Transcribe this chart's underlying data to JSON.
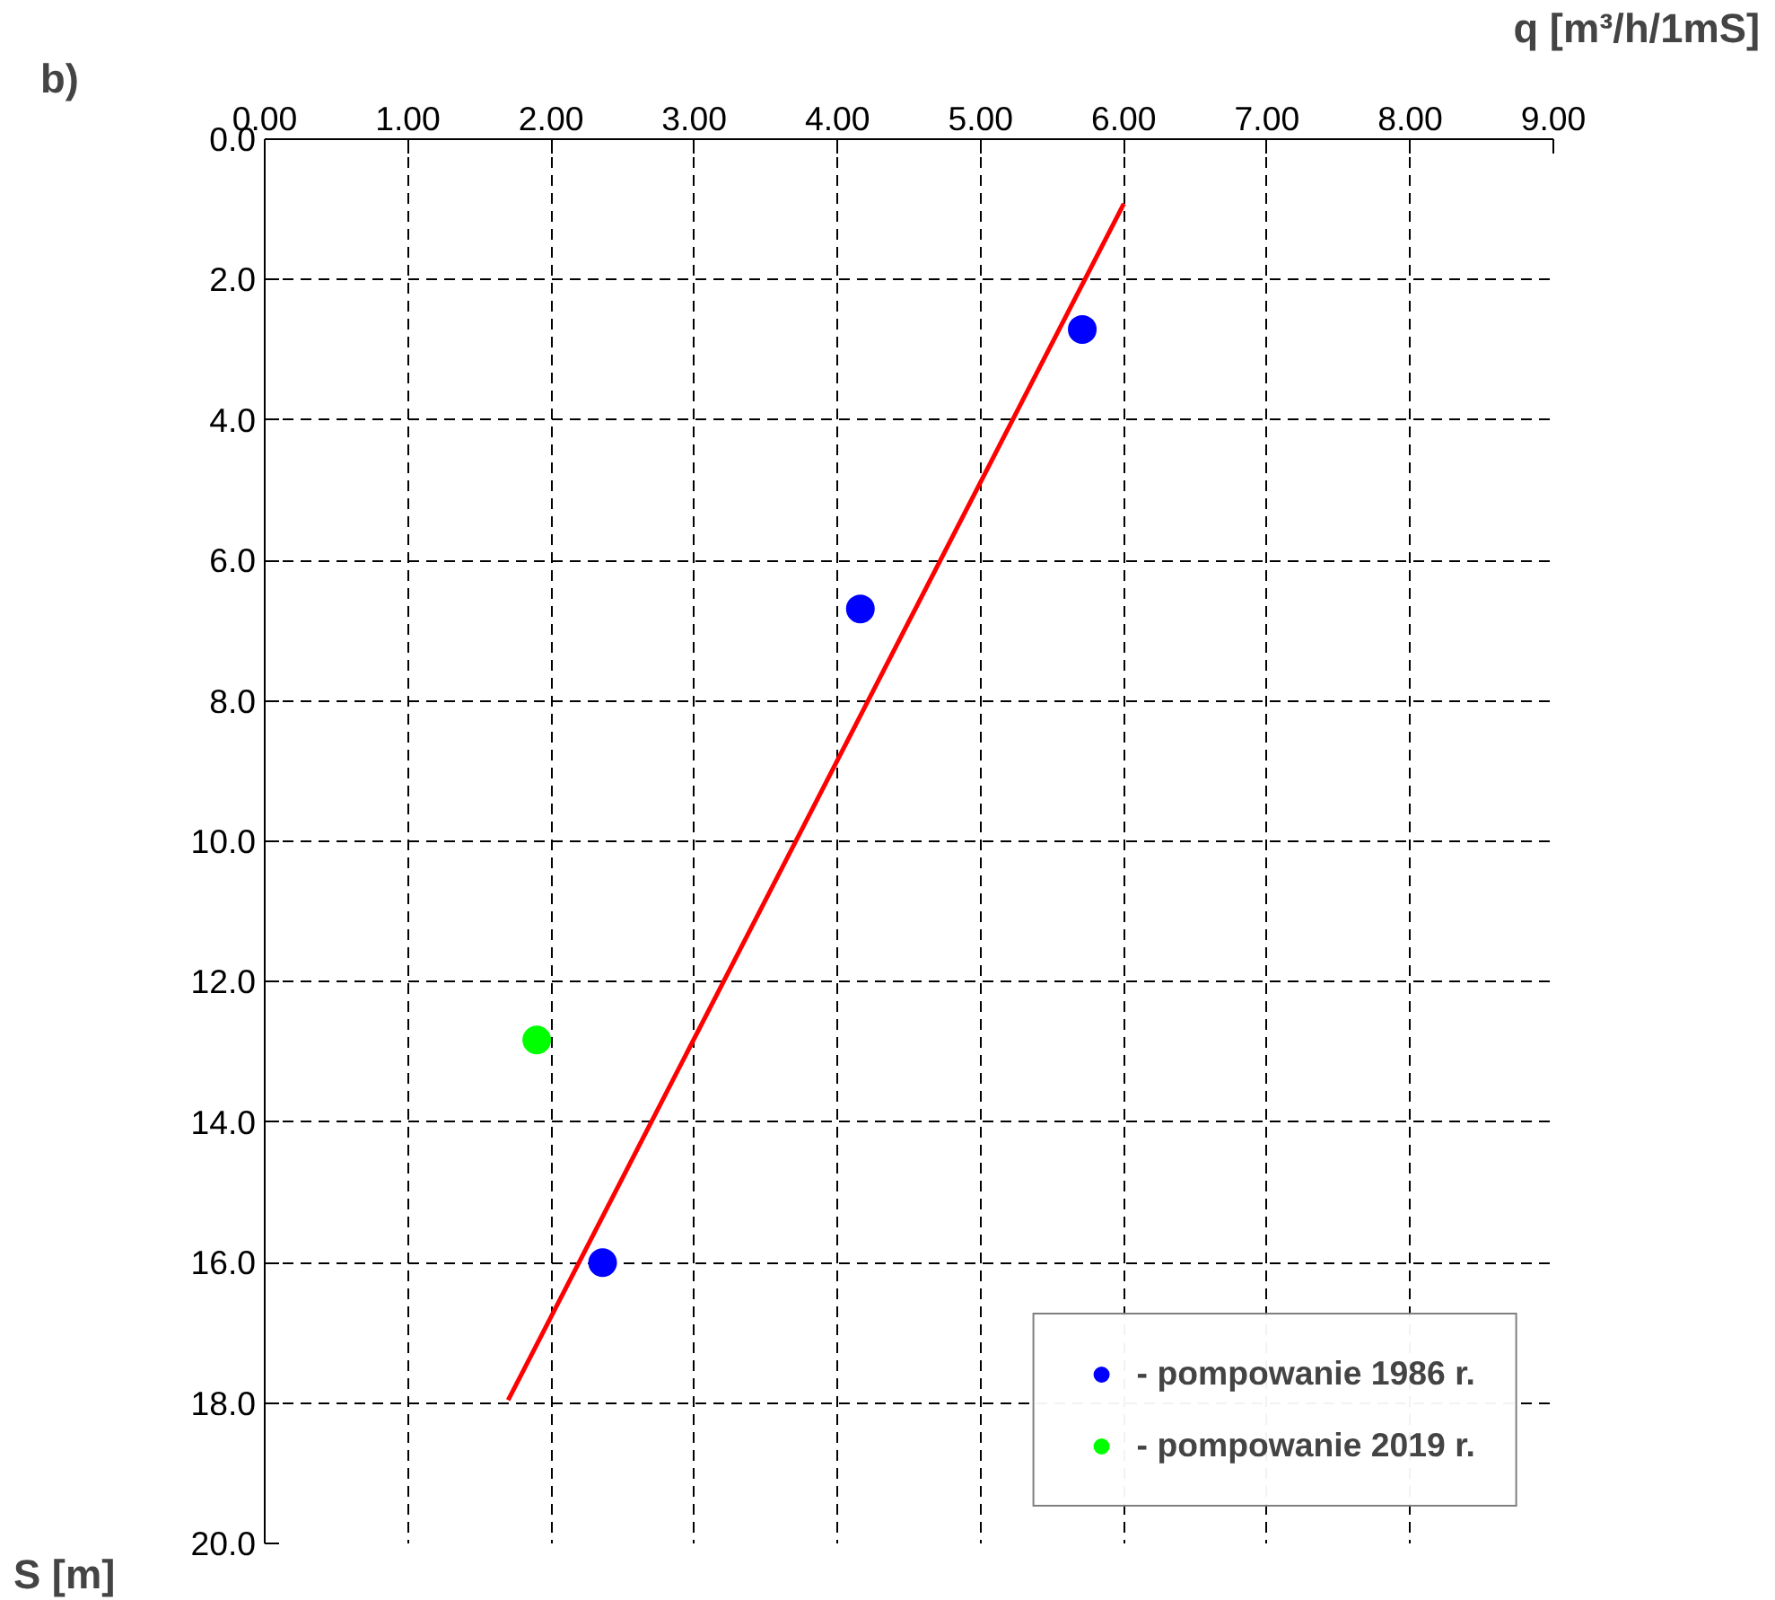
{
  "chart_data": {
    "type": "scatter",
    "title": "b)",
    "xlabel": "q [m³/h/1mS]",
    "ylabel": "S [m]",
    "xlim": [
      0,
      9
    ],
    "ylim": [
      20,
      0
    ],
    "xticks": [
      {
        "value": 0,
        "label": "0.00"
      },
      {
        "value": 1,
        "label": "1.00"
      },
      {
        "value": 2,
        "label": "2.00"
      },
      {
        "value": 3,
        "label": "3.00"
      },
      {
        "value": 4,
        "label": "4.00"
      },
      {
        "value": 5,
        "label": "5.00"
      },
      {
        "value": 6,
        "label": "6.00"
      },
      {
        "value": 7,
        "label": "7.00"
      },
      {
        "value": 8,
        "label": "8.00"
      },
      {
        "value": 9,
        "label": "9.00"
      }
    ],
    "yticks": [
      {
        "value": 0,
        "label": "0.0"
      },
      {
        "value": 2,
        "label": "2.0"
      },
      {
        "value": 4,
        "label": "4.0"
      },
      {
        "value": 6,
        "label": "6.0"
      },
      {
        "value": 8,
        "label": "8.0"
      },
      {
        "value": 10,
        "label": "10.0"
      },
      {
        "value": 12,
        "label": "12.0"
      },
      {
        "value": 14,
        "label": "14.0"
      },
      {
        "value": 16,
        "label": "16.0"
      },
      {
        "value": 18,
        "label": "18.0"
      },
      {
        "value": 20,
        "label": "20.0"
      }
    ],
    "grid": true,
    "legend": "bottom right",
    "marker": "circle",
    "series": [
      {
        "type": "line",
        "color": "#ff0000",
        "marker": "none",
        "x": [
          1.7,
          6.0
        ],
        "values": [
          17.96,
          0.92
        ]
      },
      {
        "name": "- pompowanie 1986 r.",
        "color": "#0000ff",
        "x": [
          5.71,
          4.16,
          2.36
        ],
        "values": [
          2.71,
          6.69,
          16.0
        ]
      },
      {
        "name": "- pompowanie 2019 r.",
        "color": "#00ff00",
        "x": [
          1.9
        ],
        "values": [
          12.83
        ]
      }
    ]
  }
}
